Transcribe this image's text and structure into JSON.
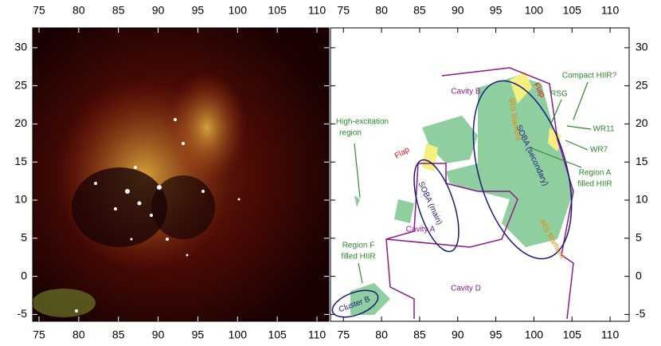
{
  "chart_data": [
    {
      "type": "image",
      "xlim": [
        74.2,
        111.5
      ],
      "ylim": [
        -5.9,
        32.6
      ],
      "xticks": [
        75,
        80,
        85,
        90,
        95,
        100,
        105,
        110
      ],
      "yticks": [
        -5,
        0,
        5,
        10,
        15,
        20,
        25,
        30
      ]
    },
    {
      "type": "map",
      "xlim": [
        73.3,
        112.5
      ],
      "ylim": [
        -5.9,
        32.6
      ],
      "xticks": [
        75,
        80,
        85,
        90,
        95,
        100,
        105,
        110
      ],
      "yticks": [
        -5,
        0,
        5,
        10,
        15,
        20,
        25,
        30
      ],
      "annotations": [
        "Cavity B",
        "Cavity A",
        "Cavity D",
        "Compact HIIR?",
        "RSG",
        "WR11",
        "WR7",
        "High-excitation",
        "region",
        "Flap",
        "Flap",
        "Region A",
        "filled HIIR",
        "SOBA (main)",
        "SOBA (secondary)",
        "Region F",
        "filled HIIR",
        "Cluster B",
        "IRS filament",
        "IRS filament"
      ]
    }
  ]
}
